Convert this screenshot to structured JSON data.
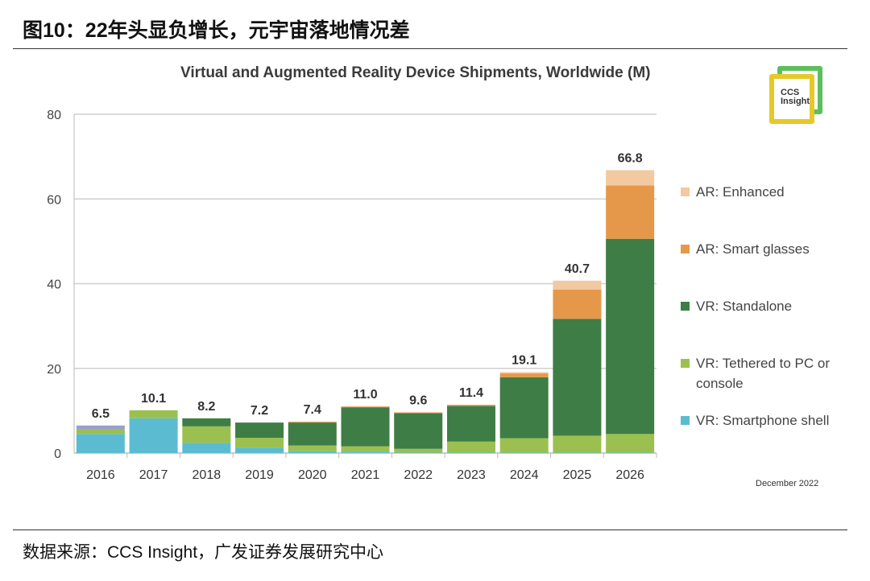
{
  "header": {
    "title": "图10：22年头显负增长，元宇宙落地情况差"
  },
  "footer": {
    "source": "数据来源：CCS Insight，广发证券发展研究中心"
  },
  "logo": {
    "text": "CCS Insight"
  },
  "chart_data": {
    "type": "bar",
    "stacked": true,
    "title": "Virtual and Augmented Reality Device Shipments, Worldwide (M)",
    "note": "December 2022",
    "categories": [
      "2016",
      "2017",
      "2018",
      "2019",
      "2020",
      "2021",
      "2022",
      "2023",
      "2024",
      "2025",
      "2026"
    ],
    "totals": [
      "6.5",
      "10.1",
      "8.2",
      "7.2",
      "7.4",
      "11.0",
      "9.6",
      "11.4",
      "19.1",
      "40.7",
      "66.8"
    ],
    "ylim": [
      0,
      80
    ],
    "yticks": [
      "0",
      "20",
      "40",
      "60",
      "80"
    ],
    "grid": true,
    "legend": "right",
    "series": [
      {
        "name": "VR: Smartphone shell",
        "color": "#5bbcd1",
        "values": [
          4.5,
          8.2,
          2.4,
          1.3,
          0.5,
          0.3,
          0.1,
          0.1,
          0.1,
          0.1,
          0.1
        ]
      },
      {
        "name": "VR: Tethered to PC or console",
        "color": "#9bc04f",
        "values": [
          1.2,
          1.9,
          3.9,
          2.3,
          1.3,
          1.3,
          0.9,
          2.6,
          3.4,
          4.0,
          4.4
        ]
      },
      {
        "name": "",
        "color": "#9a9fd0",
        "values": [
          0.8,
          0,
          0,
          0,
          0,
          0,
          0,
          0,
          0,
          0,
          0
        ]
      },
      {
        "name": "VR: Standalone",
        "color": "#3e7d45",
        "values": [
          0,
          0,
          1.9,
          3.6,
          5.4,
          9.2,
          8.4,
          8.4,
          14.4,
          27.6,
          46.1
        ]
      },
      {
        "name": "AR: Smart glasses",
        "color": "#e6984a",
        "values": [
          0,
          0,
          0,
          0,
          0.2,
          0.2,
          0.2,
          0.3,
          0.9,
          6.9,
          12.6
        ]
      },
      {
        "name": "AR: Enhanced",
        "color": "#f2c9a0",
        "values": [
          0,
          0,
          0,
          0,
          0,
          0,
          0,
          0,
          0.3,
          2.1,
          3.6
        ]
      }
    ]
  }
}
